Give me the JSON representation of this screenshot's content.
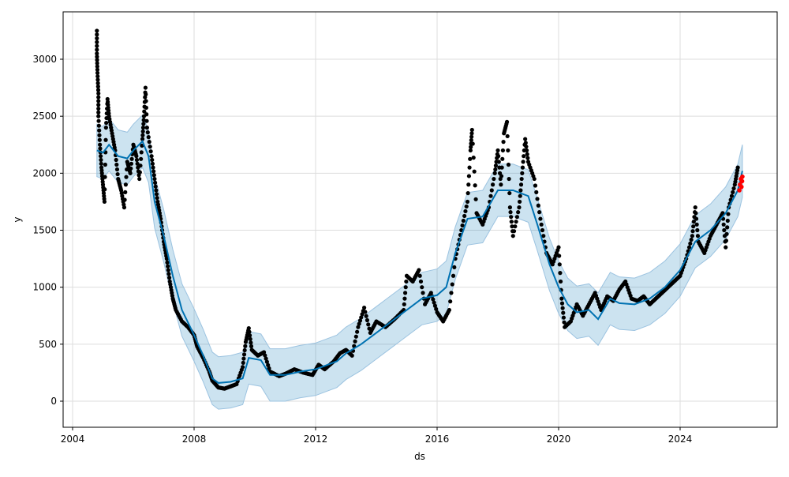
{
  "chart_data": {
    "type": "line",
    "xlabel": "ds",
    "ylabel": "y",
    "xlim": [
      2003.7,
      2027.1
    ],
    "ylim": [
      -230,
      3350
    ],
    "xticks": [
      2004,
      2008,
      2012,
      2016,
      2020,
      2024
    ],
    "yticks": [
      0,
      500,
      1000,
      1500,
      2000,
      2500,
      3000
    ],
    "grid": true,
    "colors": {
      "forecast": "#0072B2",
      "band": "#0072B2",
      "observed": "#000000",
      "highlight": "#ff0000"
    },
    "yhat": [
      [
        2004.8,
        2200
      ],
      [
        2005.0,
        2180
      ],
      [
        2005.2,
        2250
      ],
      [
        2005.5,
        2150
      ],
      [
        2005.8,
        2130
      ],
      [
        2006.0,
        2200
      ],
      [
        2006.3,
        2280
      ],
      [
        2006.5,
        2150
      ],
      [
        2006.7,
        1750
      ],
      [
        2007.0,
        1450
      ],
      [
        2007.3,
        1100
      ],
      [
        2007.6,
        800
      ],
      [
        2008.0,
        580
      ],
      [
        2008.3,
        400
      ],
      [
        2008.6,
        200
      ],
      [
        2008.8,
        160
      ],
      [
        2009.2,
        170
      ],
      [
        2009.6,
        200
      ],
      [
        2009.8,
        380
      ],
      [
        2010.2,
        360
      ],
      [
        2010.5,
        230
      ],
      [
        2011.0,
        230
      ],
      [
        2011.5,
        260
      ],
      [
        2012.0,
        280
      ],
      [
        2012.3,
        310
      ],
      [
        2012.7,
        350
      ],
      [
        2013.0,
        420
      ],
      [
        2013.5,
        500
      ],
      [
        2014.0,
        600
      ],
      [
        2014.5,
        700
      ],
      [
        2015.0,
        800
      ],
      [
        2015.5,
        900
      ],
      [
        2016.0,
        930
      ],
      [
        2016.3,
        1000
      ],
      [
        2016.6,
        1300
      ],
      [
        2017.0,
        1600
      ],
      [
        2017.5,
        1620
      ],
      [
        2018.0,
        1850
      ],
      [
        2018.5,
        1850
      ],
      [
        2019.0,
        1800
      ],
      [
        2019.3,
        1550
      ],
      [
        2019.7,
        1200
      ],
      [
        2020.0,
        1000
      ],
      [
        2020.3,
        850
      ],
      [
        2020.6,
        780
      ],
      [
        2021.0,
        800
      ],
      [
        2021.3,
        720
      ],
      [
        2021.7,
        900
      ],
      [
        2022.0,
        860
      ],
      [
        2022.5,
        850
      ],
      [
        2023.0,
        900
      ],
      [
        2023.5,
        1000
      ],
      [
        2024.0,
        1150
      ],
      [
        2024.5,
        1400
      ],
      [
        2025.0,
        1500
      ],
      [
        2025.5,
        1650
      ],
      [
        2025.9,
        1850
      ],
      [
        2026.05,
        2020
      ]
    ],
    "band_halfwidth": 230,
    "observed": [
      [
        2004.8,
        3250
      ],
      [
        2004.8,
        3050
      ],
      [
        2004.82,
        2880
      ],
      [
        2004.85,
        2700
      ],
      [
        2004.85,
        2500
      ],
      [
        2004.9,
        2250
      ],
      [
        2004.95,
        2050
      ],
      [
        2005.0,
        1900
      ],
      [
        2005.05,
        1750
      ],
      [
        2005.1,
        2400
      ],
      [
        2005.15,
        2650
      ],
      [
        2005.2,
        2500
      ],
      [
        2005.3,
        2350
      ],
      [
        2005.4,
        2200
      ],
      [
        2005.5,
        1950
      ],
      [
        2005.6,
        1850
      ],
      [
        2005.7,
        1700
      ],
      [
        2005.8,
        2100
      ],
      [
        2005.9,
        2000
      ],
      [
        2006.0,
        2250
      ],
      [
        2006.1,
        2150
      ],
      [
        2006.2,
        1950
      ],
      [
        2006.3,
        2300
      ],
      [
        2006.35,
        2500
      ],
      [
        2006.4,
        2750
      ],
      [
        2006.45,
        2400
      ],
      [
        2006.6,
        2150
      ],
      [
        2006.7,
        1950
      ],
      [
        2006.8,
        1750
      ],
      [
        2006.9,
        1600
      ],
      [
        2007.0,
        1400
      ],
      [
        2007.1,
        1250
      ],
      [
        2007.2,
        1050
      ],
      [
        2007.3,
        900
      ],
      [
        2007.4,
        800
      ],
      [
        2007.6,
        700
      ],
      [
        2007.8,
        650
      ],
      [
        2008.0,
        580
      ],
      [
        2008.1,
        480
      ],
      [
        2008.3,
        380
      ],
      [
        2008.5,
        260
      ],
      [
        2008.6,
        180
      ],
      [
        2008.8,
        120
      ],
      [
        2009.0,
        110
      ],
      [
        2009.2,
        130
      ],
      [
        2009.4,
        150
      ],
      [
        2009.6,
        300
      ],
      [
        2009.7,
        520
      ],
      [
        2009.8,
        640
      ],
      [
        2009.9,
        450
      ],
      [
        2010.1,
        400
      ],
      [
        2010.3,
        430
      ],
      [
        2010.5,
        260
      ],
      [
        2010.8,
        220
      ],
      [
        2011.0,
        240
      ],
      [
        2011.3,
        280
      ],
      [
        2011.6,
        250
      ],
      [
        2011.9,
        230
      ],
      [
        2012.1,
        320
      ],
      [
        2012.3,
        280
      ],
      [
        2012.6,
        350
      ],
      [
        2012.8,
        420
      ],
      [
        2013.0,
        450
      ],
      [
        2013.2,
        400
      ],
      [
        2013.4,
        650
      ],
      [
        2013.6,
        820
      ],
      [
        2013.8,
        600
      ],
      [
        2014.0,
        700
      ],
      [
        2014.3,
        650
      ],
      [
        2014.6,
        720
      ],
      [
        2014.9,
        800
      ],
      [
        2015.0,
        1100
      ],
      [
        2015.2,
        1050
      ],
      [
        2015.4,
        1150
      ],
      [
        2015.6,
        850
      ],
      [
        2015.8,
        950
      ],
      [
        2016.0,
        780
      ],
      [
        2016.2,
        700
      ],
      [
        2016.4,
        800
      ],
      [
        2016.6,
        1250
      ],
      [
        2016.8,
        1500
      ],
      [
        2017.0,
        1750
      ],
      [
        2017.1,
        2200
      ],
      [
        2017.15,
        2380
      ],
      [
        2017.3,
        1650
      ],
      [
        2017.5,
        1550
      ],
      [
        2017.7,
        1700
      ],
      [
        2017.9,
        2000
      ],
      [
        2018.0,
        2200
      ],
      [
        2018.1,
        1900
      ],
      [
        2018.2,
        2350
      ],
      [
        2018.3,
        2450
      ],
      [
        2018.4,
        1700
      ],
      [
        2018.5,
        1450
      ],
      [
        2018.7,
        1700
      ],
      [
        2018.8,
        2000
      ],
      [
        2018.9,
        2300
      ],
      [
        2019.0,
        2100
      ],
      [
        2019.2,
        1950
      ],
      [
        2019.4,
        1600
      ],
      [
        2019.6,
        1300
      ],
      [
        2019.8,
        1200
      ],
      [
        2020.0,
        1350
      ],
      [
        2020.1,
        900
      ],
      [
        2020.2,
        650
      ],
      [
        2020.4,
        700
      ],
      [
        2020.6,
        850
      ],
      [
        2020.8,
        750
      ],
      [
        2021.0,
        850
      ],
      [
        2021.2,
        950
      ],
      [
        2021.4,
        800
      ],
      [
        2021.6,
        920
      ],
      [
        2021.8,
        880
      ],
      [
        2022.0,
        980
      ],
      [
        2022.2,
        1050
      ],
      [
        2022.4,
        900
      ],
      [
        2022.6,
        880
      ],
      [
        2022.8,
        920
      ],
      [
        2023.0,
        850
      ],
      [
        2023.2,
        900
      ],
      [
        2023.4,
        950
      ],
      [
        2023.6,
        1000
      ],
      [
        2023.8,
        1050
      ],
      [
        2024.0,
        1100
      ],
      [
        2024.2,
        1250
      ],
      [
        2024.4,
        1450
      ],
      [
        2024.5,
        1700
      ],
      [
        2024.6,
        1400
      ],
      [
        2024.8,
        1300
      ],
      [
        2025.0,
        1450
      ],
      [
        2025.2,
        1550
      ],
      [
        2025.4,
        1650
      ],
      [
        2025.5,
        1350
      ],
      [
        2025.6,
        1700
      ],
      [
        2025.8,
        1900
      ],
      [
        2025.9,
        2050
      ]
    ],
    "highlight": [
      [
        2025.95,
        1850
      ],
      [
        2025.97,
        1900
      ],
      [
        2026.0,
        1950
      ],
      [
        2026.02,
        1880
      ],
      [
        2026.04,
        1930
      ],
      [
        2026.05,
        1970
      ]
    ]
  }
}
